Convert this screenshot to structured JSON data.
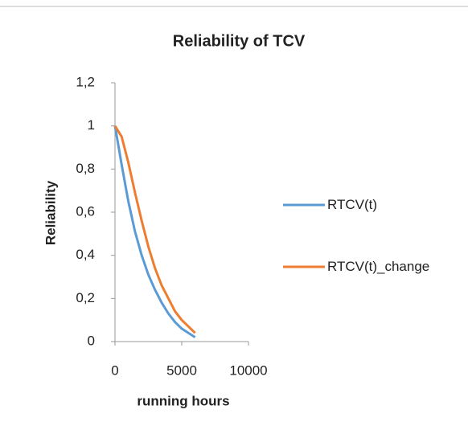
{
  "chart_data": {
    "type": "line",
    "title": "Reliability of TCV",
    "x_label": "running hours",
    "y_label": "Reliability",
    "x": [
      0,
      500,
      1000,
      1500,
      2000,
      2500,
      3000,
      3500,
      4000,
      4500,
      5000,
      5500,
      6000
    ],
    "series": [
      {
        "name": "RTCV(t)",
        "color": "#5b9bd5",
        "values": [
          1,
          0.82,
          0.65,
          0.51,
          0.4,
          0.31,
          0.24,
          0.18,
          0.13,
          0.09,
          0.06,
          0.04,
          0.02
        ]
      },
      {
        "name": "RTCV(t)_change",
        "color": "#ed7d31",
        "values": [
          1,
          0.95,
          0.83,
          0.69,
          0.56,
          0.44,
          0.34,
          0.26,
          0.2,
          0.14,
          0.1,
          0.07,
          0.04
        ]
      }
    ],
    "xlim": [
      0,
      10000
    ],
    "xticks": [
      0,
      5000,
      10000
    ],
    "ylim": [
      0,
      1.2
    ],
    "yticks": [
      0,
      {
        "value": 0.2,
        "label": "0,2"
      },
      {
        "value": 0.4,
        "label": "0,4"
      },
      {
        "value": 0.6,
        "label": "0,6"
      },
      {
        "value": 0.8,
        "label": "0,8"
      },
      1,
      {
        "value": 1.2,
        "label": "1,2"
      }
    ],
    "grid": false,
    "legend": "right"
  }
}
